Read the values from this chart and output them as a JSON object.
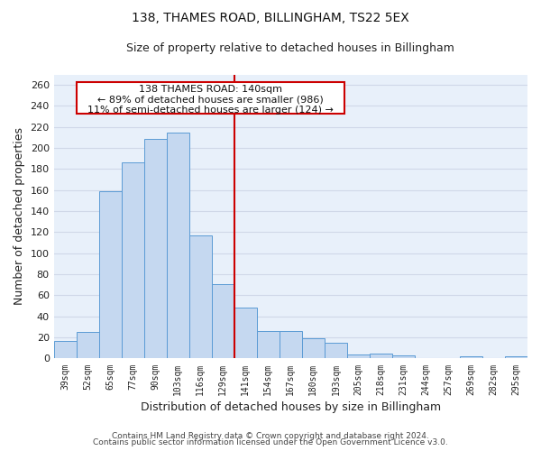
{
  "title": "138, THAMES ROAD, BILLINGHAM, TS22 5EX",
  "subtitle": "Size of property relative to detached houses in Billingham",
  "xlabel": "Distribution of detached houses by size in Billingham",
  "ylabel": "Number of detached properties",
  "bar_color": "#c5d8f0",
  "bar_edge_color": "#5b9bd5",
  "background_color": "#e8f0fa",
  "grid_color": "#d0d8e8",
  "annotation_box_edge": "#cc0000",
  "vline_color": "#cc0000",
  "categories": [
    "39sqm",
    "52sqm",
    "65sqm",
    "77sqm",
    "90sqm",
    "103sqm",
    "116sqm",
    "129sqm",
    "141sqm",
    "154sqm",
    "167sqm",
    "180sqm",
    "193sqm",
    "205sqm",
    "218sqm",
    "231sqm",
    "244sqm",
    "257sqm",
    "269sqm",
    "282sqm",
    "295sqm"
  ],
  "values": [
    17,
    25,
    159,
    186,
    209,
    215,
    117,
    71,
    48,
    26,
    26,
    19,
    15,
    4,
    5,
    3,
    0,
    0,
    2,
    0,
    2
  ],
  "vline_x_index": 8,
  "ann_line1": "138 THAMES ROAD: 140sqm",
  "ann_line2": "← 89% of detached houses are smaller (986)",
  "ann_line3": "11% of semi-detached houses are larger (124) →",
  "ylim": [
    0,
    270
  ],
  "yticks": [
    0,
    20,
    40,
    60,
    80,
    100,
    120,
    140,
    160,
    180,
    200,
    220,
    240,
    260
  ],
  "footer_line1": "Contains HM Land Registry data © Crown copyright and database right 2024.",
  "footer_line2": "Contains public sector information licensed under the Open Government Licence v3.0."
}
